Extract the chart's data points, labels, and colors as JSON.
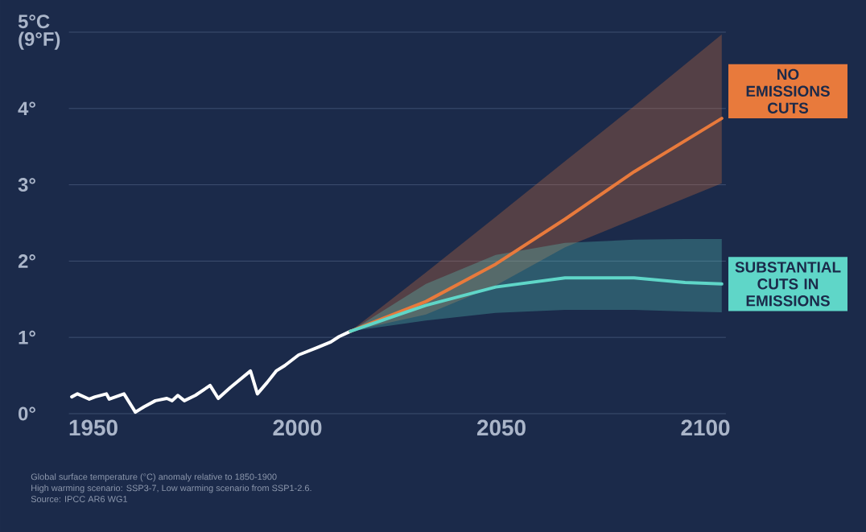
{
  "chart_data": {
    "type": "line",
    "x": [
      1944.7,
      1946.1,
      1949,
      1950.4,
      1953.2,
      1953.9,
      1957.5,
      1960.3,
      1962.4,
      1965.2,
      1968,
      1969.3,
      1970.7,
      1972.3,
      1975,
      1978.6,
      1980.6,
      1983.5,
      1988.5,
      1990.2,
      1992.6,
      1994.8,
      1996.9,
      2000.3,
      2004.6,
      2008.2,
      2010.2,
      2013
    ],
    "series": [
      {
        "color": "#ffffff",
        "values": [
          0.22,
          0.26,
          0.19,
          0.22,
          0.26,
          0.19,
          0.26,
          0.02,
          0.09,
          0.17,
          0.2,
          0.17,
          0.24,
          0.17,
          0.24,
          0.37,
          0.2,
          0.34,
          0.56,
          0.26,
          0.41,
          0.56,
          0.63,
          0.77,
          0.86,
          0.94,
          1.01,
          1.08
        ]
      },
      {
        "name": "NO EMISSIONS CUTS",
        "color": "#e87a3c",
        "x": [
          2013,
          2031.5,
          2048.6,
          2065.6,
          2082.5,
          2104
        ],
        "values": [
          1.08,
          1.47,
          1.96,
          2.55,
          3.17,
          3.87
        ],
        "lower": [
          1.08,
          1.3,
          1.68,
          2.18,
          2.55,
          3.02
        ],
        "upper": [
          1.08,
          1.85,
          2.58,
          3.31,
          4.03,
          4.97
        ]
      },
      {
        "name": "SUBSTANTIAL CUTS IN EMISSIONS",
        "color": "#5fd6c8",
        "x": [
          2013,
          2031.5,
          2048.6,
          2065.6,
          2082.5,
          2095,
          2104
        ],
        "values": [
          1.08,
          1.42,
          1.66,
          1.78,
          1.78,
          1.72,
          1.7
        ],
        "lower": [
          1.08,
          1.22,
          1.32,
          1.36,
          1.36,
          1.34,
          1.33
        ],
        "upper": [
          1.08,
          1.7,
          2.08,
          2.24,
          2.28,
          2.29,
          2.29
        ]
      }
    ],
    "xlim": [
      1944,
      2105
    ],
    "xticks": [
      1950,
      2000,
      2050,
      2100
    ],
    "ylim": [
      0,
      5
    ],
    "yticks": [
      {
        "value": 0,
        "label": "0°"
      },
      {
        "value": 1,
        "label": "1°"
      },
      {
        "value": 2,
        "label": "2°"
      },
      {
        "value": 3,
        "label": "3°"
      },
      {
        "value": 4,
        "label": "4°"
      },
      {
        "value": 5,
        "label": "5°C (9°F)"
      }
    ],
    "grid": "y",
    "annotations": [
      "Global surface temperature (°C) anomaly relative to 1850-1900",
      "High warming scenario: SSP3-7, Low warming scenario from SSP1-2.6.",
      "Source: IPCC AR6 WG1"
    ]
  }
}
